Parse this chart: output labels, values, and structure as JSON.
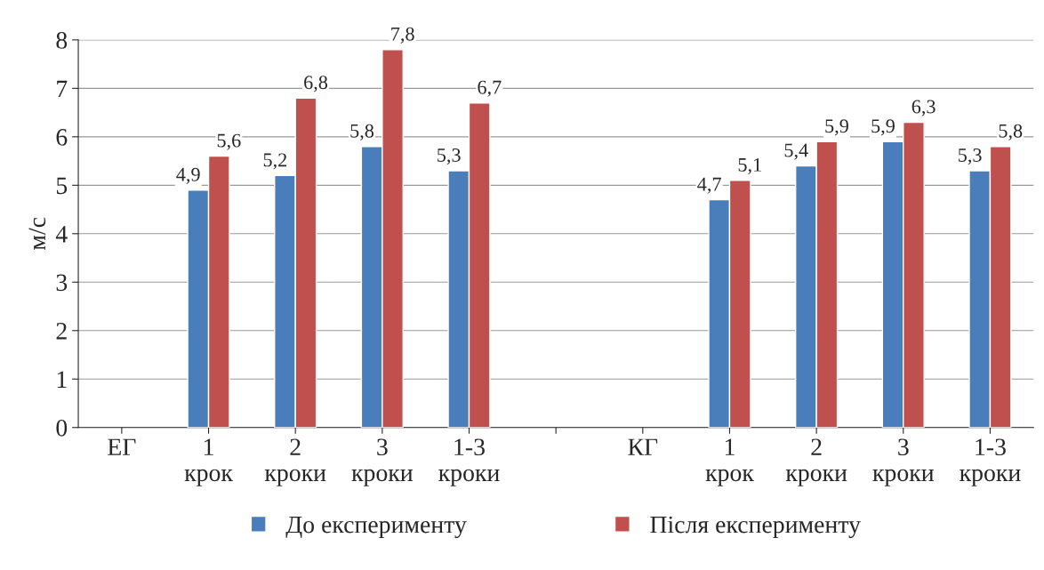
{
  "chart_data": {
    "type": "bar",
    "ylabel": "м/с",
    "categories": [
      "ЕГ",
      "1\nкрок",
      "2\nкроки",
      "3\nкроки",
      "1-3\nкроки",
      null,
      "КГ",
      "1\nкрок",
      "2\nкроки",
      "3\nкроки",
      "1-3\nкроки"
    ],
    "series": [
      {
        "name": "До експерименту",
        "color": "#4a7ebb",
        "values": [
          null,
          4.9,
          5.2,
          5.8,
          5.3,
          null,
          null,
          4.7,
          5.4,
          5.9,
          5.3
        ],
        "value_labels": [
          null,
          "4,9",
          "5,2",
          "5,8",
          "5,3",
          null,
          null,
          "4,7",
          "5,4",
          "5,9",
          "5,3"
        ]
      },
      {
        "name": "Після експерименту",
        "color": "#c0504d",
        "values": [
          null,
          5.6,
          6.8,
          7.8,
          6.7,
          null,
          null,
          5.1,
          5.9,
          6.3,
          5.8
        ],
        "value_labels": [
          null,
          "5,6",
          "6,8",
          "7,8",
          "6,7",
          null,
          null,
          "5,1",
          "5,9",
          "6,3",
          "5,8"
        ]
      }
    ],
    "ylim": [
      0,
      8
    ],
    "yticks": [
      0,
      1,
      2,
      3,
      4,
      5,
      6,
      7,
      8
    ],
    "grid": "y",
    "legend": "bottom"
  }
}
